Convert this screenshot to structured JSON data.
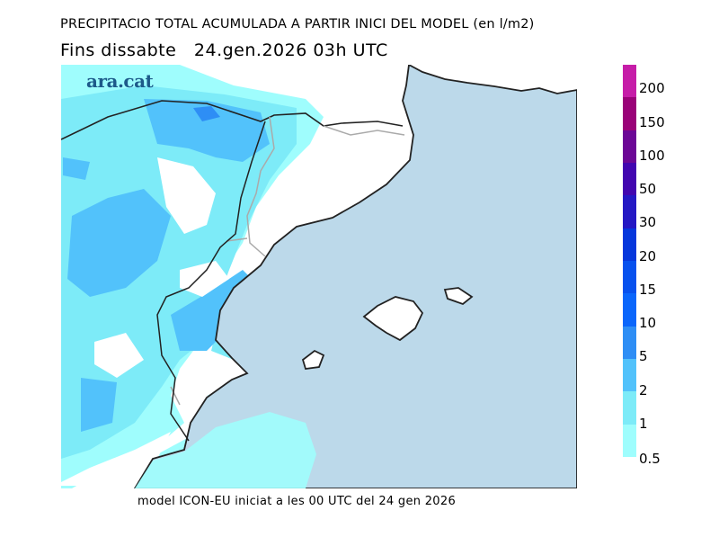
{
  "title": "PRECIPITACIO TOTAL ACUMULADA A PARTIR INICI DEL MODEL (en l/m2)",
  "subtitle": "Fins dissabte   24.gen.2026 03h UTC",
  "footer": "model ICON-EU iniciat a les 00 UTC del 24 gen 2026",
  "logo": "ara.cat",
  "colors": {
    "sea": "#bcd9ea",
    "land": "#ffffff",
    "coast": "#222222",
    "border": "#aaaaaa"
  },
  "legend": {
    "unit": "l/m2",
    "bins": [
      {
        "label": "0.5",
        "color": "#9ffdfd"
      },
      {
        "label": "1",
        "color": "#7debf8"
      },
      {
        "label": "2",
        "color": "#52c2fb"
      },
      {
        "label": "5",
        "color": "#2e8ef5"
      },
      {
        "label": "10",
        "color": "#0a66fb"
      },
      {
        "label": "15",
        "color": "#0751ee"
      },
      {
        "label": "20",
        "color": "#0537dc"
      },
      {
        "label": "30",
        "color": "#2418c4"
      },
      {
        "label": "50",
        "color": "#4206b0"
      },
      {
        "label": "100",
        "color": "#6c0796"
      },
      {
        "label": "150",
        "color": "#9a0278"
      },
      {
        "label": "200",
        "color": "#c61da8"
      }
    ]
  }
}
